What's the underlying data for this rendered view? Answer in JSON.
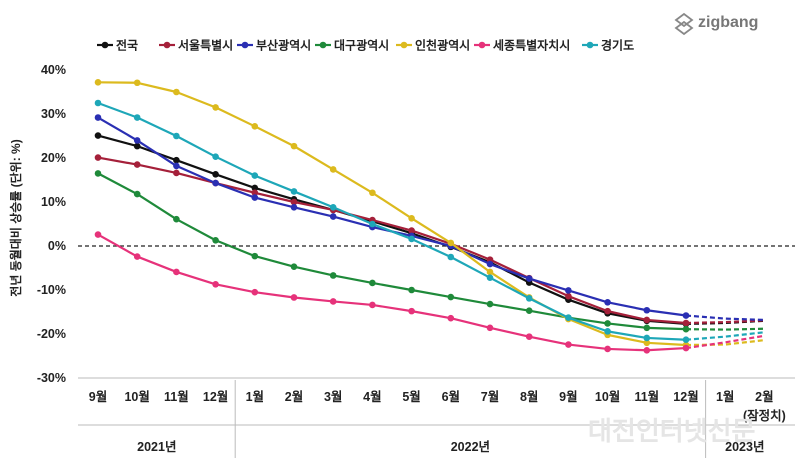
{
  "brand": {
    "logo_text": "zigbang",
    "watermark": "대전인터넷신문"
  },
  "chart_data": {
    "type": "line",
    "title": "",
    "ylabel": "전년 동월대비 상승률 (단위: %)",
    "xlabel": "",
    "ylim": [
      -30,
      40
    ],
    "yticks": [
      40,
      30,
      20,
      10,
      0,
      -10,
      -20,
      -30
    ],
    "ytick_labels": [
      "40%",
      "30%",
      "20%",
      "10%",
      "0%",
      "-10%",
      "-20%",
      "-30%"
    ],
    "categories": [
      "9월",
      "10월",
      "11월",
      "12월",
      "1월",
      "2월",
      "3월",
      "4월",
      "5월",
      "6월",
      "7월",
      "8월",
      "9월",
      "10월",
      "11월",
      "12월",
      "1월",
      "2월"
    ],
    "year_groups": [
      {
        "label": "2021년",
        "start": 0,
        "end": 3
      },
      {
        "label": "2022년",
        "start": 4,
        "end": 15
      },
      {
        "label": "2023년",
        "start": 16,
        "end": 17
      }
    ],
    "note": "(잠정치)",
    "provisional_from_index": 16,
    "series": [
      {
        "name": "전국",
        "color": "#111111",
        "values": [
          25.1,
          22.7,
          19.5,
          16.3,
          13.2,
          10.6,
          8.2,
          5.6,
          2.9,
          -0.2,
          -3.7,
          -8.3,
          -12.2,
          -15.3,
          -17.0,
          -17.7,
          -17.5,
          -17.0
        ]
      },
      {
        "name": "서울특별시",
        "color": "#a5203a",
        "values": [
          20.1,
          18.5,
          16.6,
          14.3,
          12.1,
          10.0,
          8.2,
          5.9,
          3.5,
          0.5,
          -3.1,
          -7.3,
          -11.4,
          -14.8,
          -16.8,
          -17.5,
          -17.3,
          -16.9
        ]
      },
      {
        "name": "부산광역시",
        "color": "#2a2fb3",
        "values": [
          29.2,
          24.0,
          18.2,
          14.3,
          11.0,
          8.8,
          6.7,
          4.3,
          2.3,
          0.0,
          -4.1,
          -7.4,
          -10.1,
          -12.8,
          -14.6,
          -15.8,
          -16.5,
          -16.8
        ]
      },
      {
        "name": "대구광역시",
        "color": "#1f8a3a",
        "values": [
          16.5,
          11.8,
          6.1,
          1.3,
          -2.3,
          -4.7,
          -6.7,
          -8.4,
          -10.0,
          -11.6,
          -13.2,
          -14.7,
          -16.3,
          -17.6,
          -18.6,
          -18.9,
          -19.0,
          -18.8
        ]
      },
      {
        "name": "인천광역시",
        "color": "#dcba1e",
        "values": [
          37.2,
          37.1,
          35.0,
          31.5,
          27.2,
          22.7,
          17.4,
          12.1,
          6.3,
          0.7,
          -5.9,
          -11.7,
          -16.6,
          -20.2,
          -22.0,
          -22.5,
          -22.4,
          -21.4
        ]
      },
      {
        "name": "세종특별자치시",
        "color": "#e6327a",
        "values": [
          2.6,
          -2.4,
          -5.9,
          -8.7,
          -10.5,
          -11.7,
          -12.6,
          -13.4,
          -14.8,
          -16.4,
          -18.6,
          -20.6,
          -22.4,
          -23.4,
          -23.7,
          -23.2,
          -21.9,
          -20.4
        ]
      },
      {
        "name": "경기도",
        "color": "#1ea7b8",
        "values": [
          32.5,
          29.2,
          25.0,
          20.3,
          16.0,
          12.4,
          8.8,
          5.0,
          1.6,
          -2.5,
          -7.2,
          -11.9,
          -16.3,
          -19.4,
          -20.9,
          -21.3,
          -20.6,
          -19.6
        ]
      }
    ]
  }
}
